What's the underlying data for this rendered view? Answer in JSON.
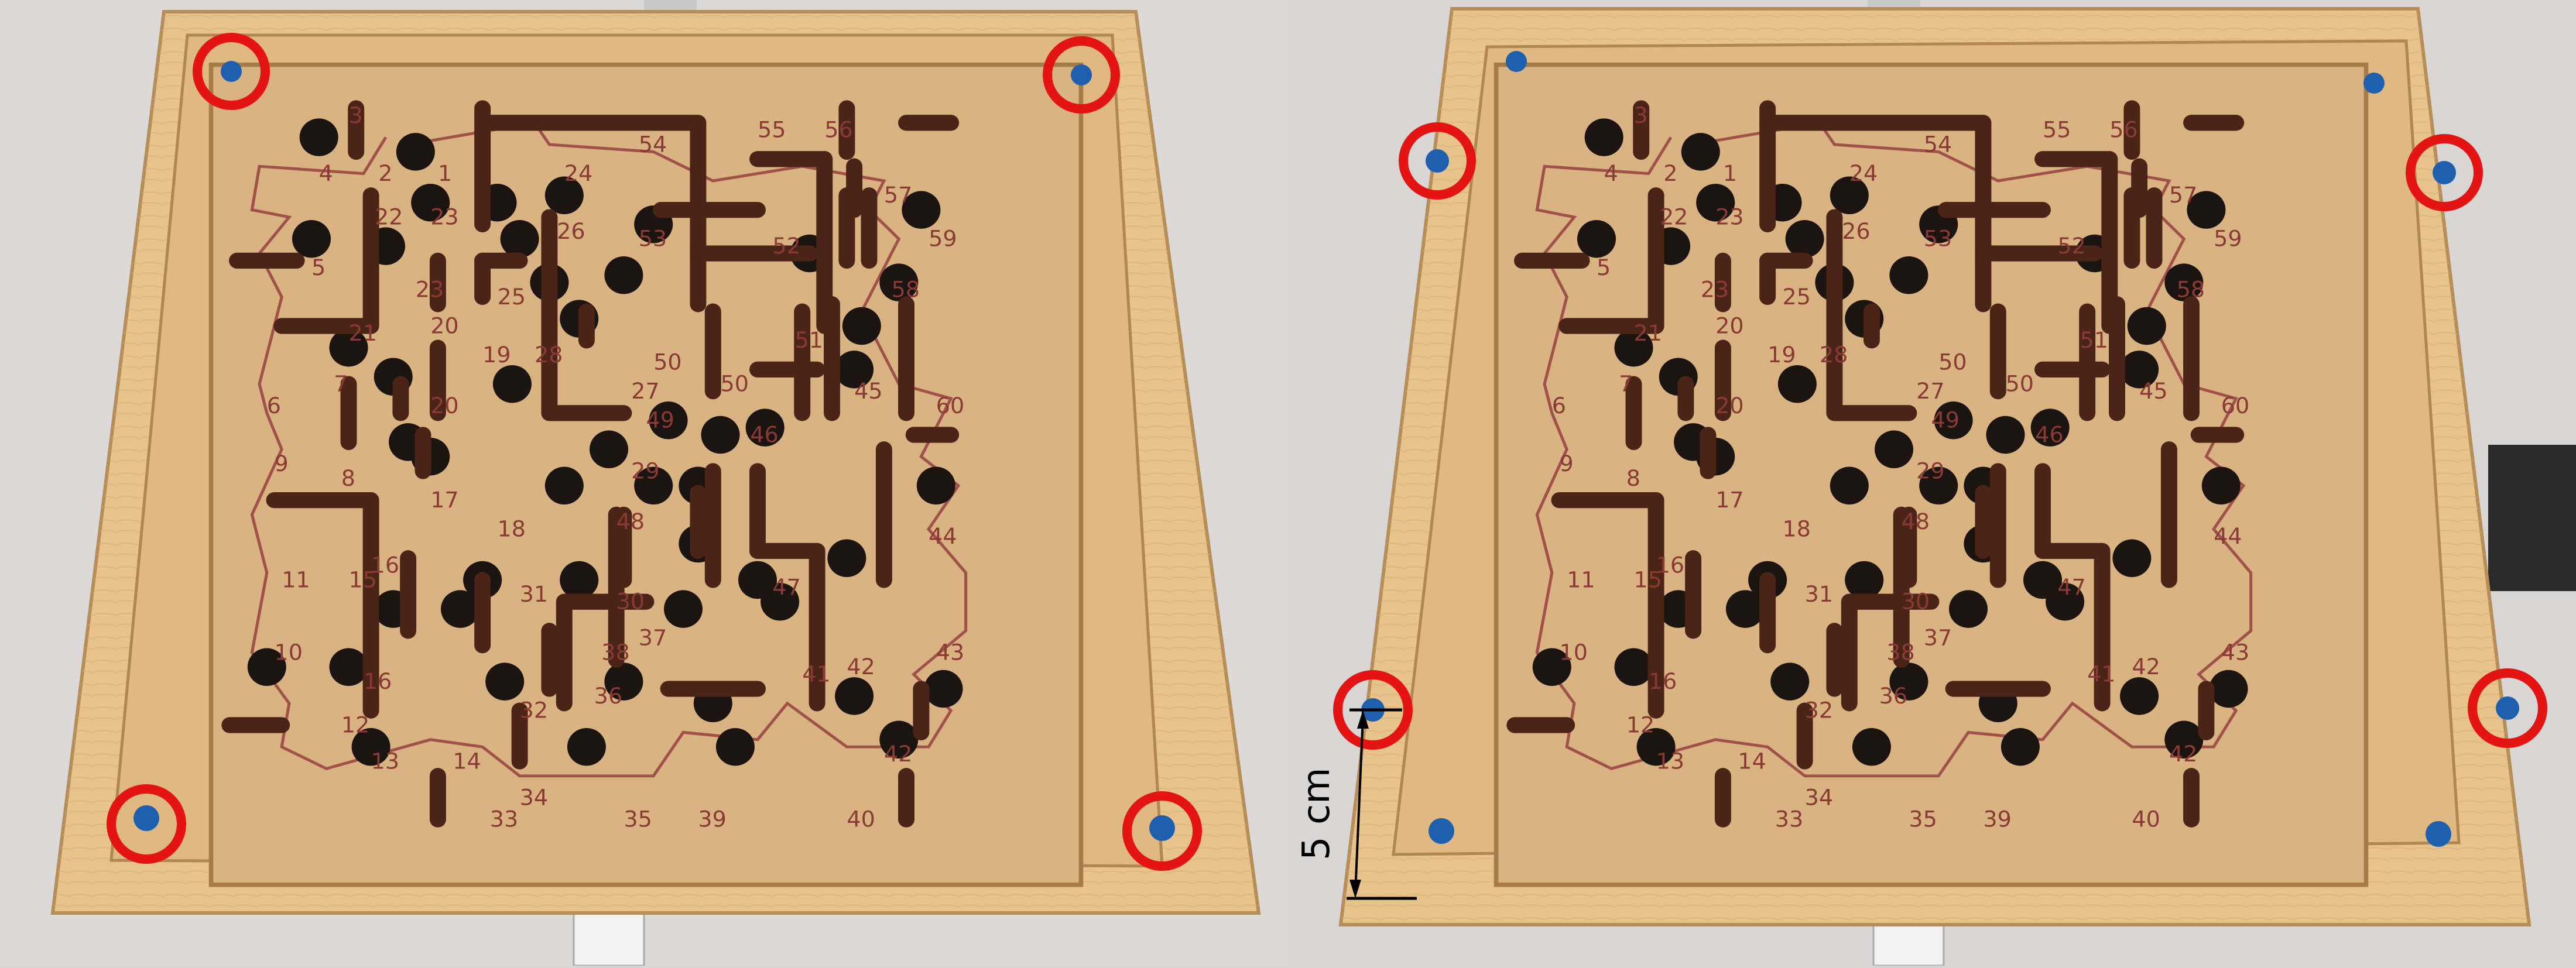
{
  "colors": {
    "background": "#d9d6d6",
    "wood": "#e8c48c",
    "wood_dark": "#c99b5f",
    "board": "#d9b482",
    "wall": "#4a2417",
    "hole": "#1c1410",
    "path": "#a0524a",
    "marker": "#1e5fb0",
    "ring": "#e41414"
  },
  "board_labels": {
    "n1": "1",
    "n2": "2",
    "n3": "3",
    "n4": "4",
    "n5": "5",
    "n6": "6",
    "n7": "7",
    "n8": "8",
    "n9": "9",
    "n10": "10",
    "n11": "11",
    "n12": "12",
    "n13": "13",
    "n14": "14",
    "n15": "15",
    "n16": "16",
    "n17": "17",
    "n18": "18",
    "n19": "19",
    "n20": "20",
    "n21": "21",
    "n22": "22",
    "n23": "23",
    "n24": "24",
    "n25": "25",
    "n26": "26",
    "n27": "27",
    "n28": "28",
    "n29": "29",
    "n30": "30",
    "n31": "31",
    "n32": "32",
    "n33": "33",
    "n34": "34",
    "n35": "35",
    "n36": "36",
    "n37": "37",
    "n38": "38",
    "n39": "39",
    "n40": "40",
    "n41": "41",
    "n42": "42",
    "n43": "43",
    "n44": "44",
    "n45": "45",
    "n46": "46",
    "n47": "47",
    "n48": "48",
    "n49": "49",
    "n50": "50",
    "n51": "51",
    "n52": "52",
    "n53": "53",
    "n54": "54",
    "n55": "55",
    "n56": "56",
    "n57": "57",
    "n58": "58",
    "n59": "59",
    "n60": "60"
  },
  "annotation": {
    "distance_label": "5 cm"
  }
}
